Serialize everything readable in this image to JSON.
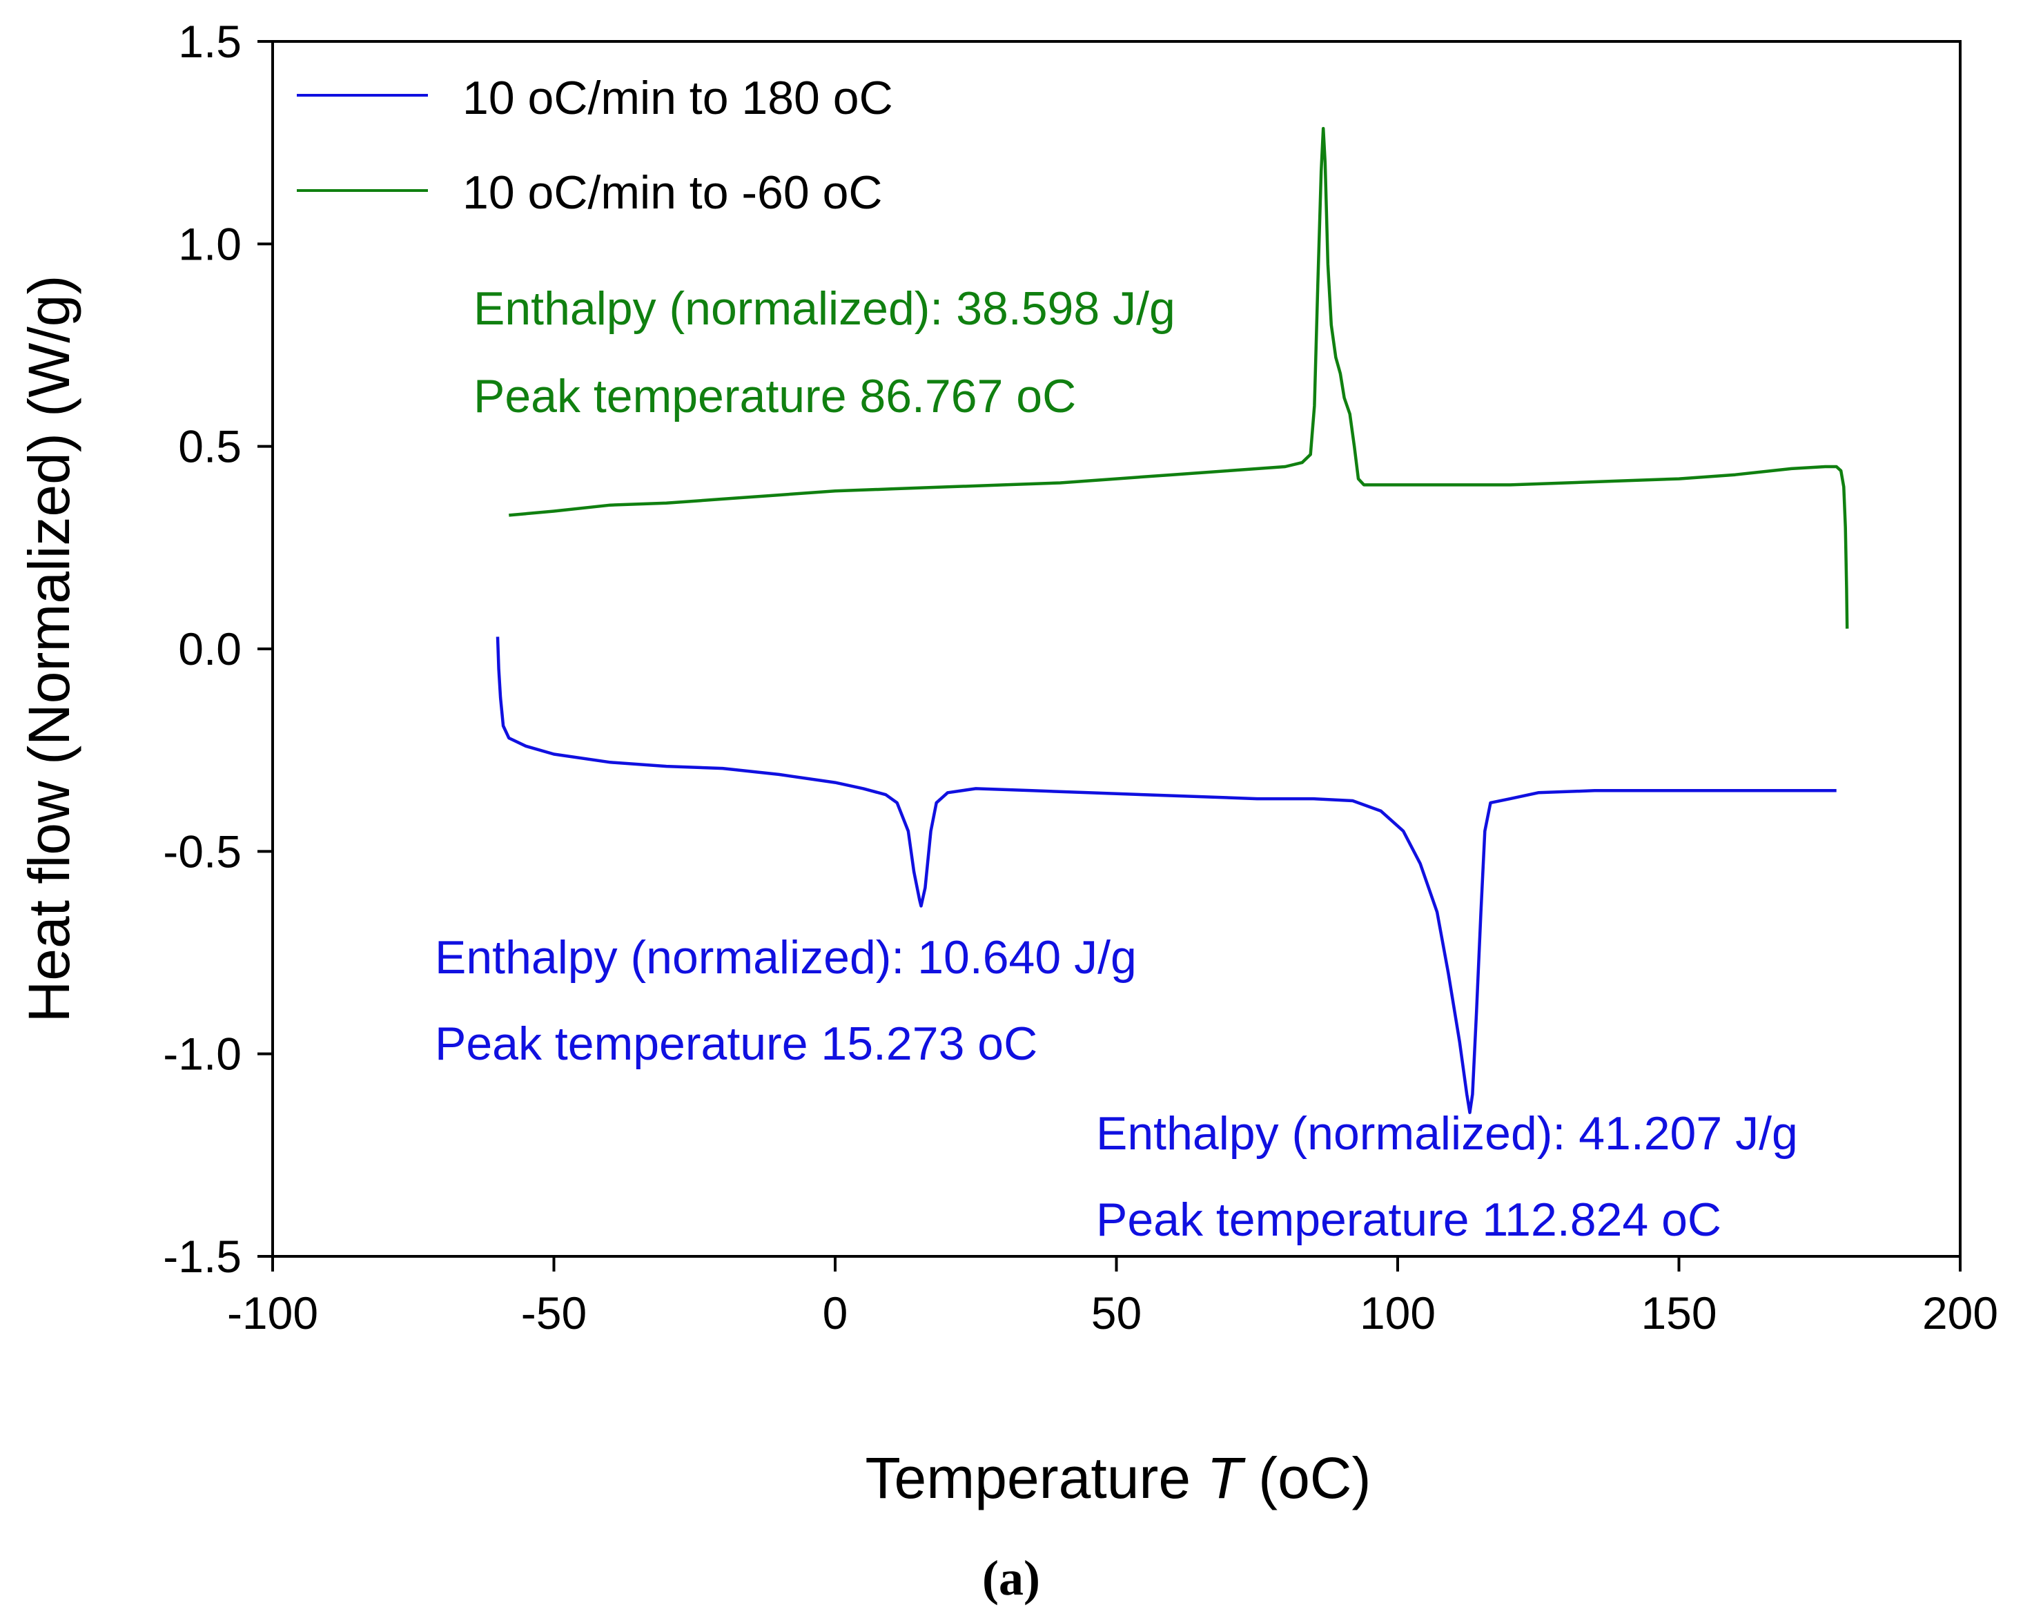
{
  "chart_data": {
    "type": "line",
    "xlabel": "Temperature",
    "xlabel_symbol": "T",
    "xlabel_unit": "(oC)",
    "ylabel": "Heat flow (Normalized) (W/g)",
    "xlim": [
      -100,
      200
    ],
    "ylim": [
      -1.5,
      1.5
    ],
    "xticks": [
      "-100",
      "-50",
      "0",
      "50",
      "100",
      "150",
      "200"
    ],
    "yticks": [
      "1.5",
      "1.0",
      "0.5",
      "0.0",
      "-0.5",
      "-1.0",
      "-1.5"
    ],
    "xtick_values": [
      -100,
      -50,
      0,
      50,
      100,
      150,
      200
    ],
    "ytick_values": [
      1.5,
      1.0,
      0.5,
      0.0,
      -0.5,
      -1.0,
      -1.5
    ],
    "grid": false,
    "legend_position": "top-left",
    "subfigure_label": "(a)",
    "series": [
      {
        "name": "10 oC/min to 180 oC",
        "color": "#1010e0",
        "points": [
          [
            -60,
            0.03
          ],
          [
            -59.8,
            -0.05
          ],
          [
            -59.5,
            -0.12
          ],
          [
            -59,
            -0.19
          ],
          [
            -58,
            -0.22
          ],
          [
            -55,
            -0.24
          ],
          [
            -50,
            -0.26
          ],
          [
            -40,
            -0.28
          ],
          [
            -30,
            -0.29
          ],
          [
            -20,
            -0.295
          ],
          [
            -10,
            -0.31
          ],
          [
            0,
            -0.33
          ],
          [
            5,
            -0.345
          ],
          [
            9,
            -0.36
          ],
          [
            11,
            -0.38
          ],
          [
            13,
            -0.45
          ],
          [
            14,
            -0.55
          ],
          [
            15,
            -0.62
          ],
          [
            15.27,
            -0.635
          ],
          [
            16,
            -0.59
          ],
          [
            17,
            -0.45
          ],
          [
            18,
            -0.38
          ],
          [
            20,
            -0.355
          ],
          [
            25,
            -0.345
          ],
          [
            35,
            -0.35
          ],
          [
            45,
            -0.355
          ],
          [
            55,
            -0.36
          ],
          [
            65,
            -0.365
          ],
          [
            75,
            -0.37
          ],
          [
            85,
            -0.37
          ],
          [
            92,
            -0.375
          ],
          [
            97,
            -0.4
          ],
          [
            101,
            -0.45
          ],
          [
            104,
            -0.53
          ],
          [
            107,
            -0.65
          ],
          [
            109,
            -0.8
          ],
          [
            111,
            -0.97
          ],
          [
            112.3,
            -1.1
          ],
          [
            112.82,
            -1.145
          ],
          [
            113.3,
            -1.1
          ],
          [
            114,
            -0.9
          ],
          [
            114.8,
            -0.65
          ],
          [
            115.5,
            -0.45
          ],
          [
            116.5,
            -0.38
          ],
          [
            120,
            -0.37
          ],
          [
            125,
            -0.355
          ],
          [
            135,
            -0.35
          ],
          [
            150,
            -0.35
          ],
          [
            165,
            -0.35
          ],
          [
            178,
            -0.35
          ]
        ]
      },
      {
        "name": "10 oC/min to -60 oC",
        "color": "#108010",
        "points": [
          [
            -58,
            0.33
          ],
          [
            -50,
            0.34
          ],
          [
            -40,
            0.355
          ],
          [
            -30,
            0.36
          ],
          [
            -20,
            0.37
          ],
          [
            -10,
            0.38
          ],
          [
            0,
            0.39
          ],
          [
            10,
            0.395
          ],
          [
            20,
            0.4
          ],
          [
            30,
            0.405
          ],
          [
            40,
            0.41
          ],
          [
            50,
            0.42
          ],
          [
            60,
            0.43
          ],
          [
            70,
            0.44
          ],
          [
            80,
            0.45
          ],
          [
            83,
            0.46
          ],
          [
            84.5,
            0.48
          ],
          [
            85.2,
            0.6
          ],
          [
            85.8,
            0.9
          ],
          [
            86.4,
            1.18
          ],
          [
            86.77,
            1.285
          ],
          [
            87.1,
            1.2
          ],
          [
            87.6,
            0.95
          ],
          [
            88.2,
            0.8
          ],
          [
            89,
            0.72
          ],
          [
            89.8,
            0.68
          ],
          [
            90.5,
            0.62
          ],
          [
            91.5,
            0.58
          ],
          [
            92.3,
            0.5
          ],
          [
            93,
            0.42
          ],
          [
            94,
            0.405
          ],
          [
            100,
            0.405
          ],
          [
            110,
            0.405
          ],
          [
            120,
            0.405
          ],
          [
            130,
            0.41
          ],
          [
            140,
            0.415
          ],
          [
            150,
            0.42
          ],
          [
            160,
            0.43
          ],
          [
            170,
            0.445
          ],
          [
            176,
            0.45
          ],
          [
            178,
            0.45
          ],
          [
            178.8,
            0.44
          ],
          [
            179.3,
            0.4
          ],
          [
            179.6,
            0.3
          ],
          [
            179.8,
            0.15
          ],
          [
            179.9,
            0.05
          ]
        ]
      }
    ],
    "annotations": [
      {
        "line1": "Enthalpy (normalized): 38.598 J/g",
        "line2": "Peak temperature 86.767",
        "unit": "oC",
        "color": "#108010"
      },
      {
        "line1": "Enthalpy (normalized): 10.640 J/g",
        "line2": "Peak temperature 15.273",
        "unit": "oC",
        "color": "#1010e0"
      },
      {
        "line1": "Enthalpy (normalized): 41.207 J/g",
        "line2": "Peak temperature 112.824",
        "unit": "oC",
        "color": "#1010e0"
      }
    ]
  }
}
